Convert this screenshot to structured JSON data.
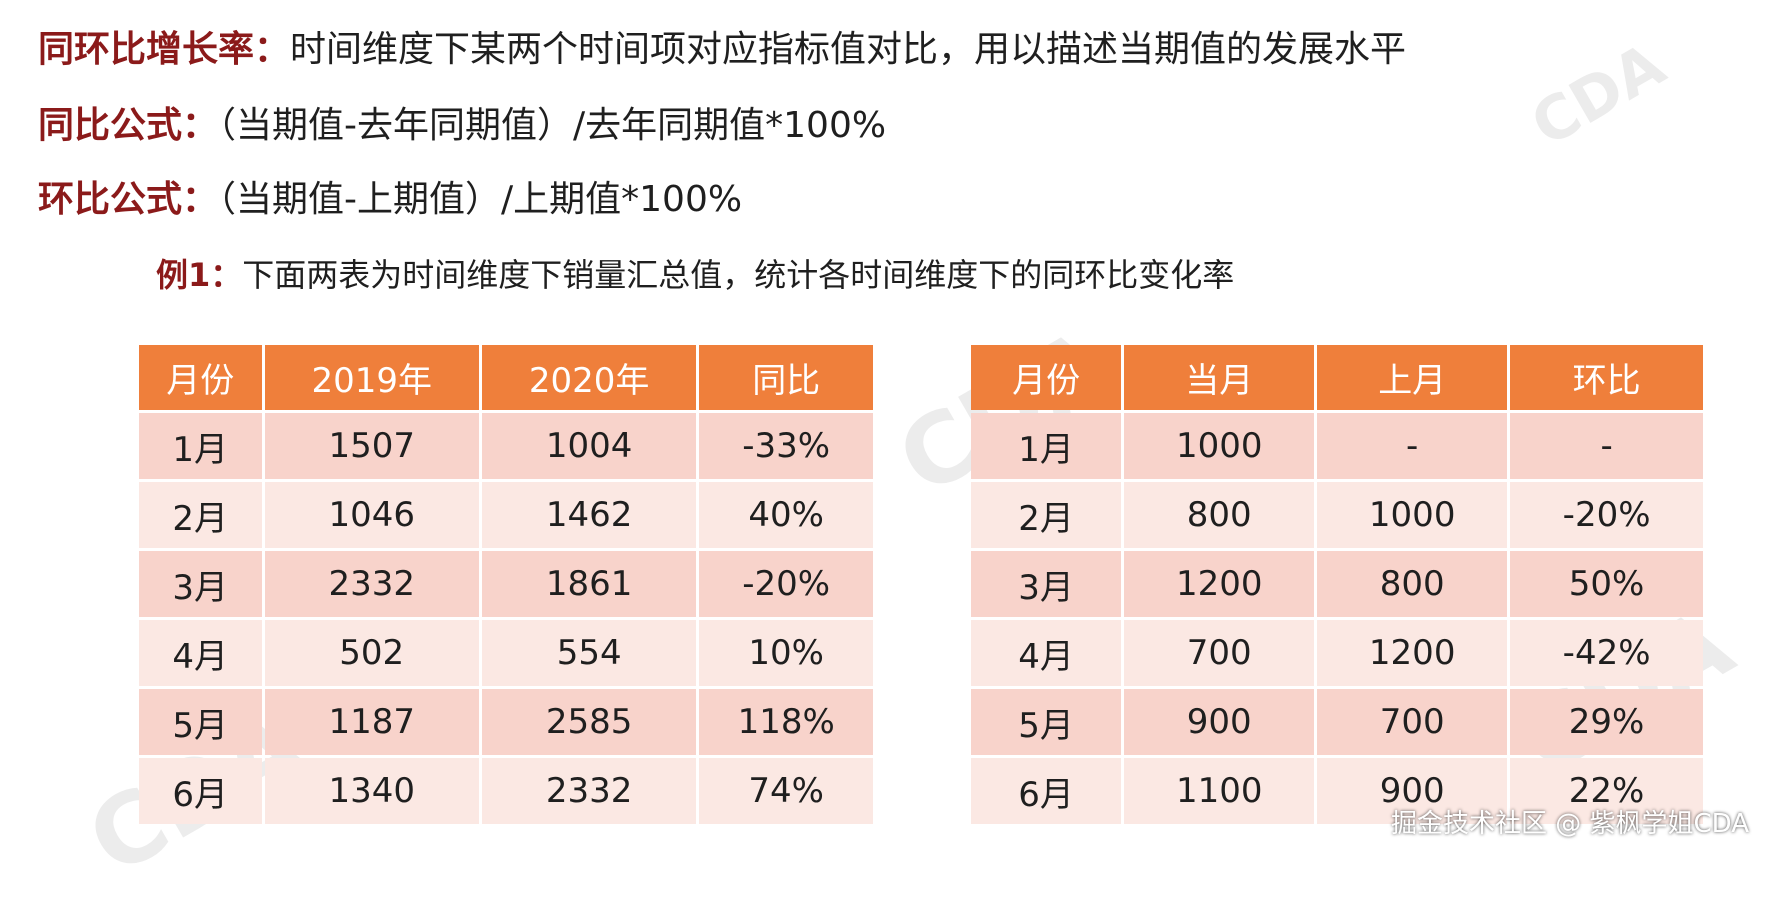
{
  "intro": {
    "definition_key": "同环比增长率：",
    "definition_text": "时间维度下某两个时间项对应指标值对比，用以描述当期值的发展水平",
    "yoy_formula_key": "同比公式：",
    "yoy_formula_text": "（当期值-去年同期值）/去年同期值*100%",
    "mom_formula_key": "环比公式：",
    "mom_formula_text": "（当期值-上期值）/上期值*100%",
    "example_key": "例1：",
    "example_text": "下面两表为时间维度下销量汇总值，统计各时间维度下的同环比变化率"
  },
  "table_yoy": {
    "headers": [
      "月份",
      "2019年",
      "2020年",
      "同比"
    ],
    "rows": [
      [
        "1月",
        "1507",
        "1004",
        "-33%"
      ],
      [
        "2月",
        "1046",
        "1462",
        "40%"
      ],
      [
        "3月",
        "2332",
        "1861",
        "-20%"
      ],
      [
        "4月",
        "502",
        "554",
        "10%"
      ],
      [
        "5月",
        "1187",
        "2585",
        "118%"
      ],
      [
        "6月",
        "1340",
        "2332",
        "74%"
      ]
    ]
  },
  "table_mom": {
    "headers": [
      "月份",
      "当月",
      "上月",
      "环比"
    ],
    "rows": [
      [
        "1月",
        "1000",
        "-",
        "-"
      ],
      [
        "2月",
        "800",
        "1000",
        "-20%"
      ],
      [
        "3月",
        "1200",
        "800",
        "50%"
      ],
      [
        "4月",
        "700",
        "1200",
        "-42%"
      ],
      [
        "5月",
        "900",
        "700",
        "29%"
      ],
      [
        "6月",
        "1100",
        "900",
        "22%"
      ]
    ]
  },
  "watermark": {
    "text": "CDA"
  },
  "footer": {
    "credit": "掘金技术社区 @ 紫枫学姐CDA"
  },
  "colors": {
    "accent_title": "#8b1a1a",
    "table_header_bg": "#ef7f3b",
    "table_row_odd": "#f8d3cb",
    "table_row_even": "#fbe8e3"
  }
}
